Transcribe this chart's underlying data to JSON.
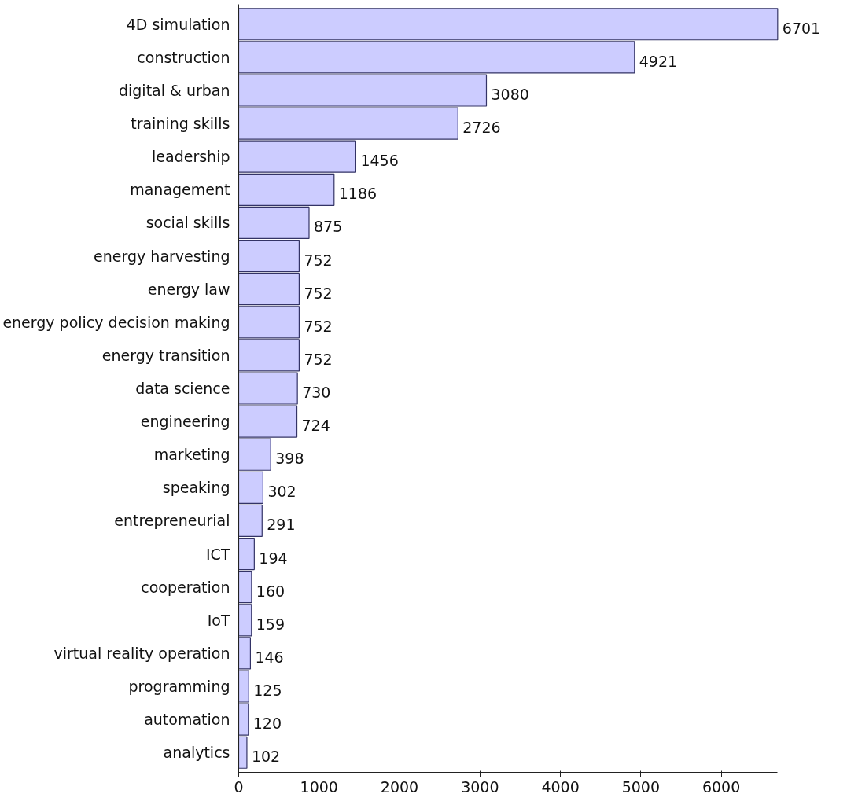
{
  "chart_data": {
    "type": "bar",
    "orientation": "horizontal",
    "categories": [
      "4D simulation",
      "construction",
      "digital & urban",
      "training skills",
      "leadership",
      "management",
      "social skills",
      "energy harvesting",
      "energy law",
      "energy policy decision making",
      "energy transition",
      "data science",
      "engineering",
      "marketing",
      "speaking",
      "entrepreneurial",
      "ICT",
      "cooperation",
      "IoT",
      "virtual reality operation",
      "programming",
      "automation",
      "analytics"
    ],
    "values": [
      6701,
      4921,
      3080,
      2726,
      1456,
      1186,
      875,
      752,
      752,
      752,
      752,
      730,
      724,
      398,
      302,
      291,
      194,
      160,
      159,
      146,
      125,
      120,
      102
    ],
    "color": "#ccccff",
    "xlim": [
      0,
      6701
    ],
    "xticks": [
      0,
      1000,
      2000,
      3000,
      4000,
      5000,
      6000
    ],
    "data_labels": true,
    "grid": false
  }
}
